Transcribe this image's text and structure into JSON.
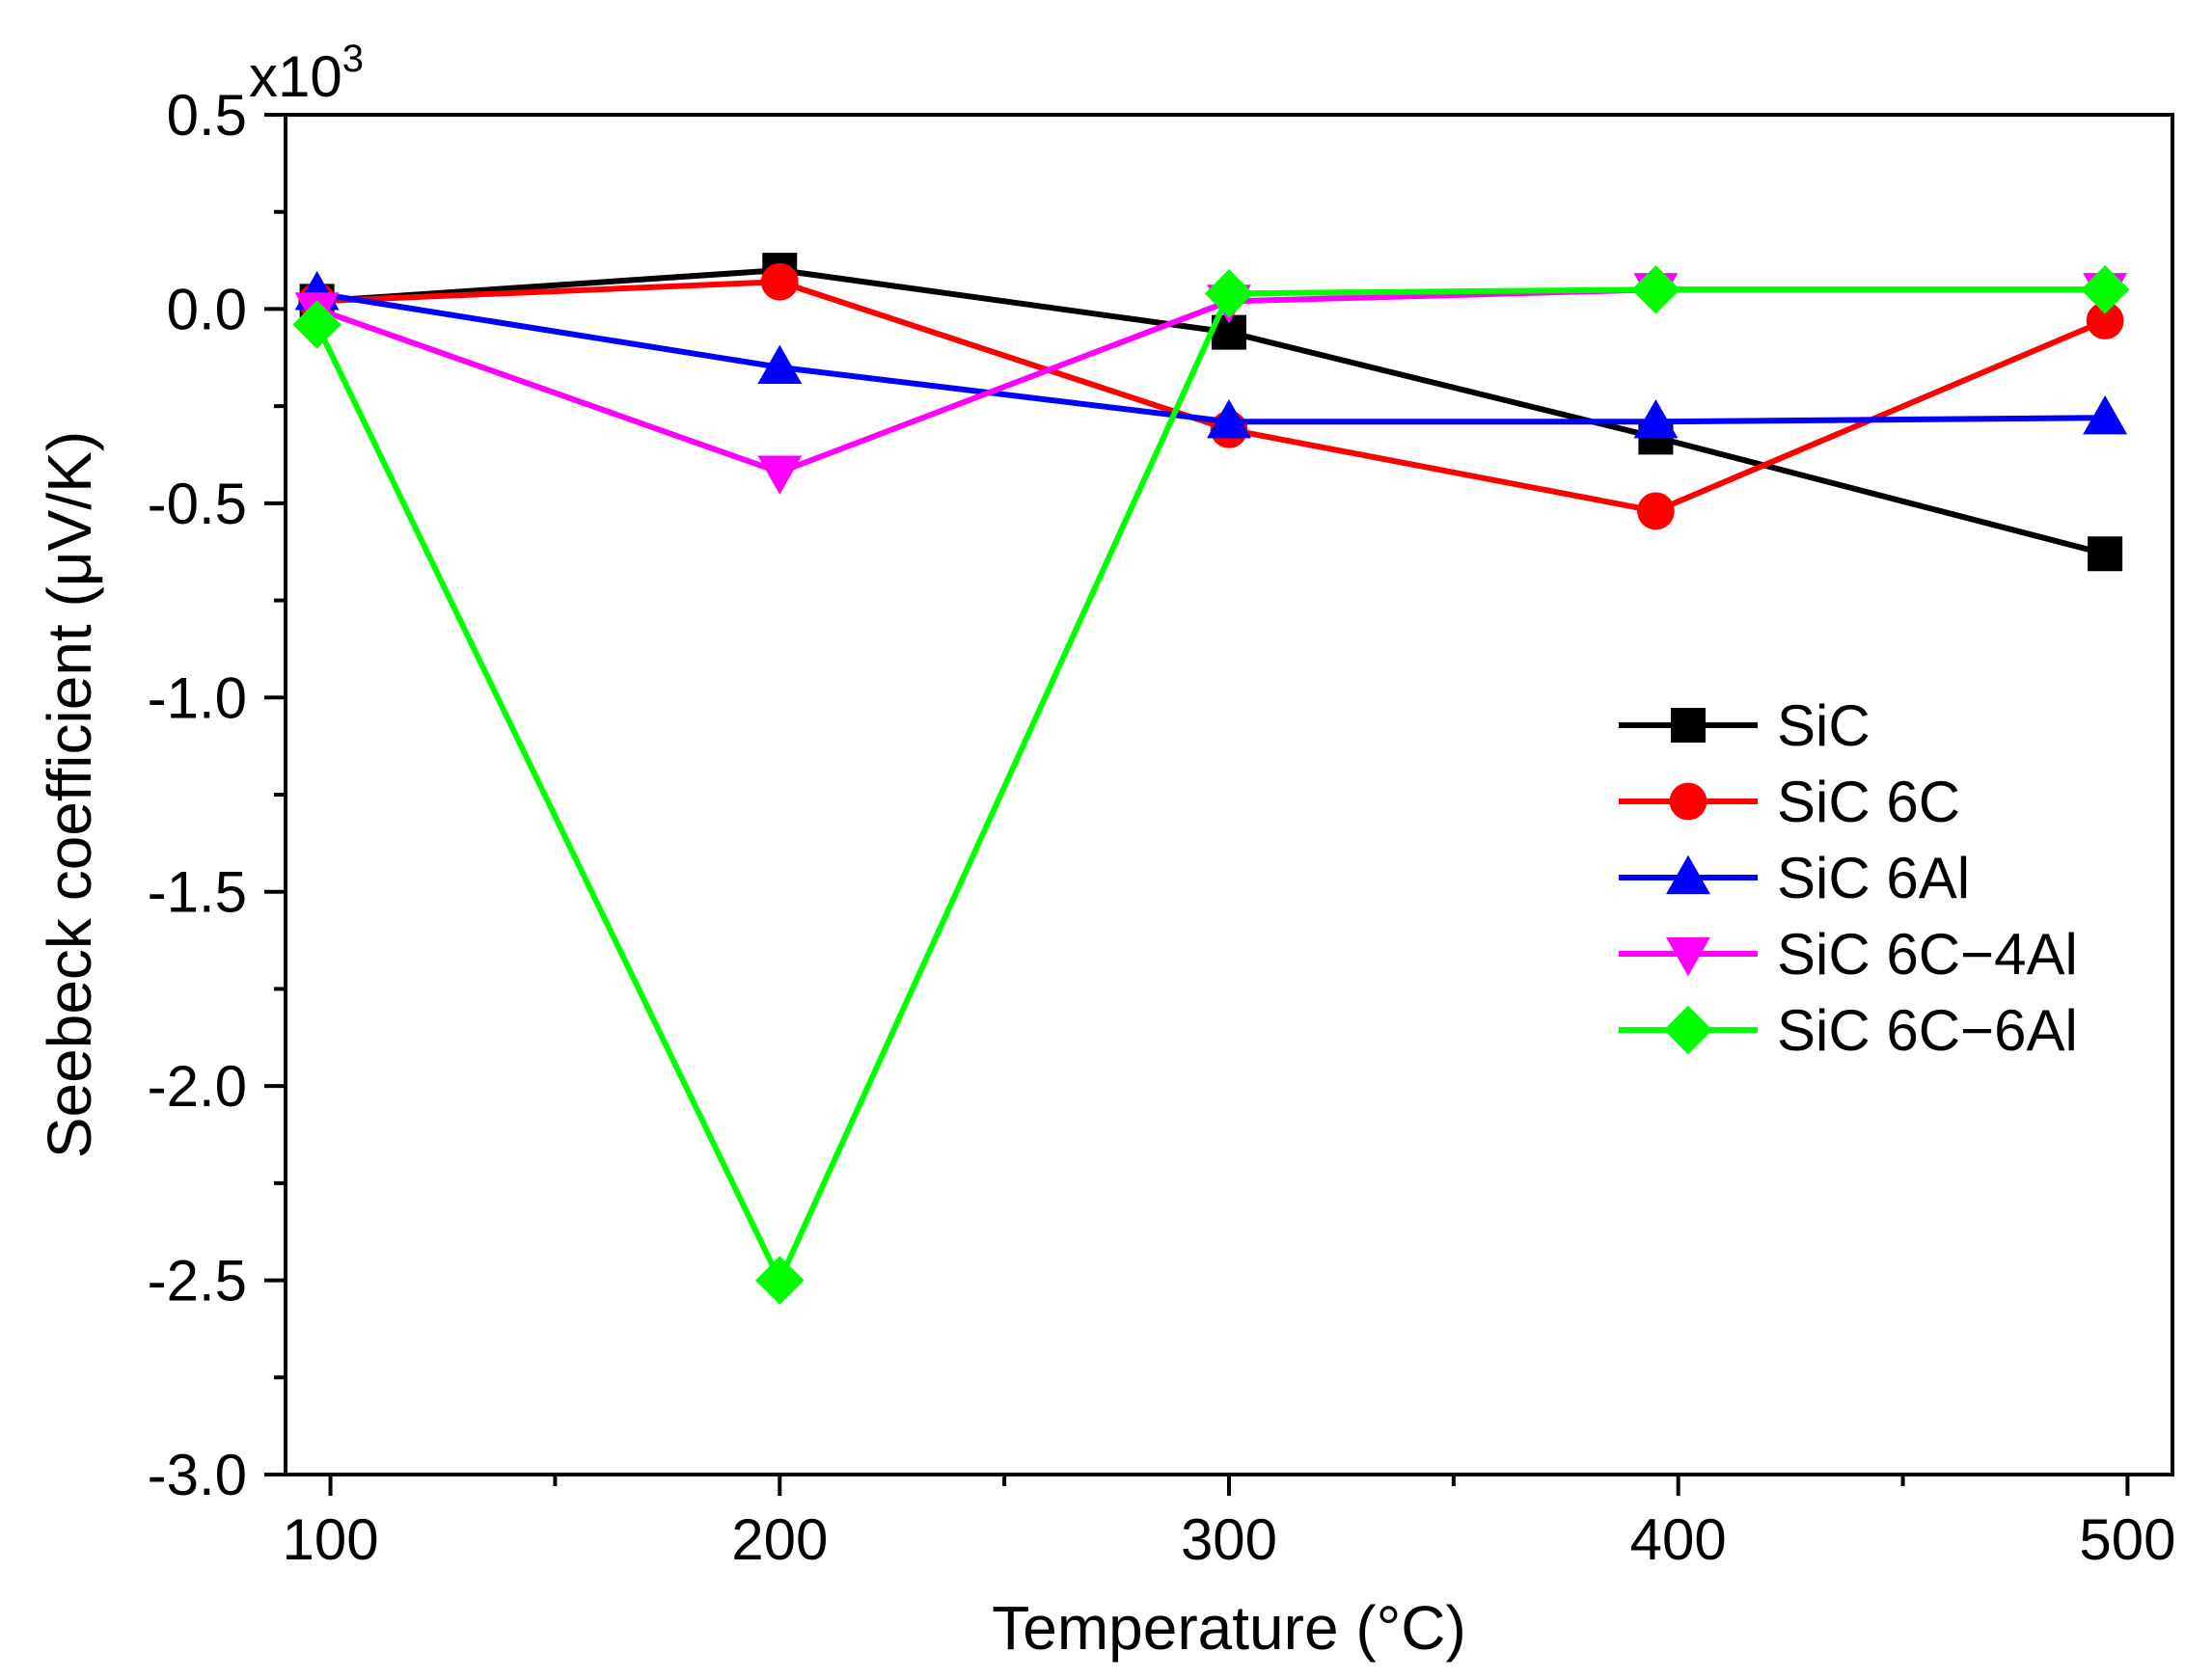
{
  "chart_data": {
    "type": "line",
    "xlabel": "Temperature (°C)",
    "ylabel": "Seebeck coefficient (μV/K)",
    "y_multiplier": {
      "base": "x10",
      "exponent": "3"
    },
    "xlim": [
      90,
      510
    ],
    "ylim": [
      -3.0,
      0.5
    ],
    "x_ticks": [
      100,
      200,
      300,
      400,
      500
    ],
    "x_tick_labels": [
      "100",
      "200",
      "300",
      "400",
      "500"
    ],
    "x_minor_ticks": [
      150,
      250,
      350,
      450
    ],
    "y_ticks": [
      -3.0,
      -2.5,
      -2.0,
      -1.5,
      -1.0,
      -0.5,
      0.0,
      0.5
    ],
    "y_tick_labels": [
      "-3.0",
      "-2.5",
      "-2.0",
      "-1.5",
      "-1.0",
      "-0.5",
      "0.0",
      "0.5"
    ],
    "y_minor_ticks": [
      -2.75,
      -2.25,
      -1.75,
      -1.25,
      -0.75,
      -0.25,
      0.25
    ],
    "grid": false,
    "legend_position": "center-right",
    "series": [
      {
        "name": "SiC",
        "color": "#000000",
        "marker": "square",
        "x": [
          97,
          200,
          300,
          395,
          495
        ],
        "y": [
          0.02,
          0.1,
          -0.06,
          -0.33,
          -0.63
        ]
      },
      {
        "name": "SiC 6C",
        "color": "#ff0000",
        "marker": "circle",
        "x": [
          97,
          200,
          300,
          395,
          495
        ],
        "y": [
          0.02,
          0.07,
          -0.31,
          -0.52,
          -0.03
        ]
      },
      {
        "name": "SiC 6Al",
        "color": "#0000ff",
        "marker": "triangle-up",
        "x": [
          97,
          200,
          300,
          395,
          495
        ],
        "y": [
          0.04,
          -0.15,
          -0.29,
          -0.29,
          -0.28
        ]
      },
      {
        "name": "SiC 6C−4Al",
        "color": "#ff00ff",
        "marker": "triangle-down",
        "x": [
          97,
          200,
          300,
          395,
          495
        ],
        "y": [
          0.0,
          -0.42,
          0.02,
          0.05,
          0.05
        ]
      },
      {
        "name": "SiC 6C−6Al",
        "color": "#00ff00",
        "marker": "diamond",
        "x": [
          97,
          200,
          300,
          395,
          495
        ],
        "y": [
          -0.04,
          -2.5,
          0.04,
          0.05,
          0.05
        ]
      }
    ]
  }
}
